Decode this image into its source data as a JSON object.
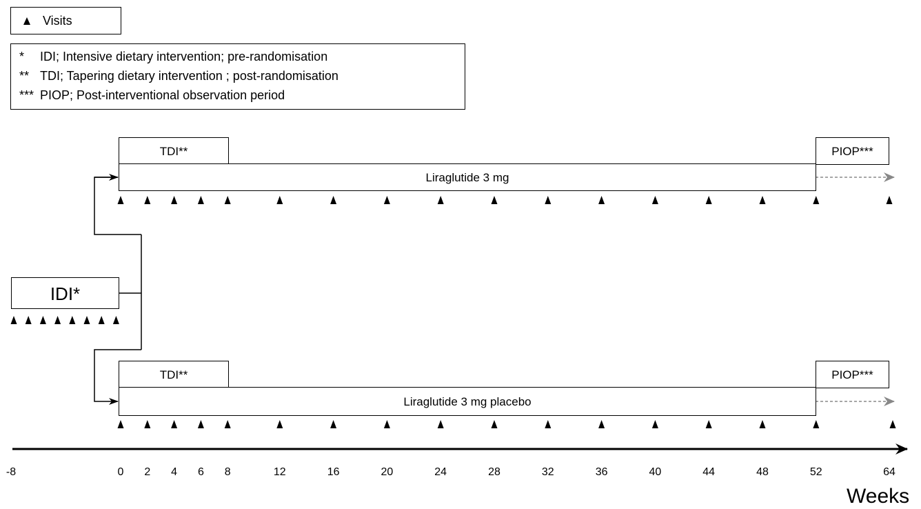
{
  "legend_visits": {
    "label": "Visits"
  },
  "footnotes": [
    {
      "mark": "*",
      "text": "IDI; Intensive dietary intervention; pre-randomisation"
    },
    {
      "mark": "**",
      "text": "TDI; Tapering dietary intervention ; post-randomisation"
    },
    {
      "mark": "***",
      "text": "PIOP; Post-interventional observation period"
    }
  ],
  "idi": {
    "label": "IDI*",
    "visit_count": 8
  },
  "arms": [
    {
      "treatment": "Liraglutide 3 mg",
      "tdi_label": "TDI**",
      "piop_label": "PIOP***"
    },
    {
      "treatment": "Liraglutide 3 mg placebo",
      "tdi_label": "TDI**",
      "piop_label": "PIOP***"
    }
  ],
  "visit_weeks": [
    0,
    2,
    4,
    6,
    8,
    12,
    16,
    20,
    24,
    28,
    32,
    36,
    40,
    44,
    48,
    52,
    64
  ],
  "axis": {
    "ticks": [
      "-8",
      "0",
      "2",
      "4",
      "6",
      "8",
      "12",
      "16",
      "20",
      "24",
      "28",
      "32",
      "36",
      "40",
      "44",
      "48",
      "52",
      "64"
    ],
    "unit_label": "Weeks"
  },
  "colors": {
    "line": "#000000",
    "followup_arrow": "#888888"
  }
}
